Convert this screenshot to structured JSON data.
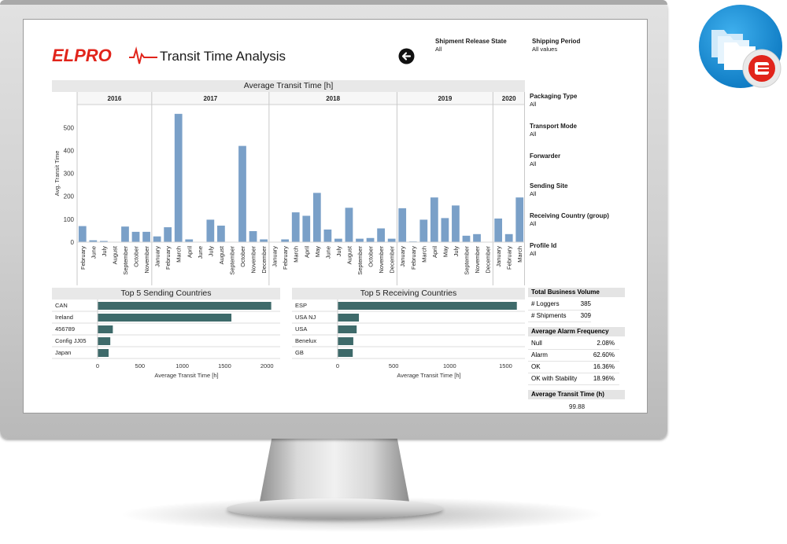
{
  "app": {
    "logo_text": "ELPRO",
    "title": "Transit Time Analysis"
  },
  "colors": {
    "bar": "#7aa0c8",
    "hbar": "#3e6a6a",
    "logo": "#e1241b",
    "icon_blue": "#1a8fd8"
  },
  "filters_top": [
    {
      "label": "Shipment Release State",
      "value": "All"
    },
    {
      "label": "Shipping Period",
      "value": "All values"
    }
  ],
  "filters_side": [
    {
      "label": "Packaging Type",
      "value": "All"
    },
    {
      "label": "Transport Mode",
      "value": "All"
    },
    {
      "label": "Forwarder",
      "value": "All"
    },
    {
      "label": "Sending Site",
      "value": "All"
    },
    {
      "label": "Receiving Country (group)",
      "value": "All"
    },
    {
      "label": "Profile Id",
      "value": "All"
    }
  ],
  "kpi": {
    "volume_title": "Total Business Volume",
    "volume": [
      {
        "label": "# Loggers",
        "value": "385"
      },
      {
        "label": "# Shipments",
        "value": "309"
      }
    ],
    "alarm_title": "Average Alarm Frequency",
    "alarm": [
      {
        "label": "Null",
        "value": "2.08%"
      },
      {
        "label": "Alarm",
        "value": "62.60%"
      },
      {
        "label": "OK",
        "value": "16.36%"
      },
      {
        "label": "OK with Stability",
        "value": "18.96%"
      }
    ],
    "avg_title": "Average Transit Time (h)",
    "avg_value": "99.88"
  },
  "chart_data": [
    {
      "type": "bar",
      "title": "Average Transit Time [h]",
      "ylabel": "Avg. Transit Time",
      "ylim": [
        0,
        580
      ],
      "yticks": [
        0,
        100,
        200,
        300,
        400,
        500
      ],
      "groups": [
        {
          "year": "2016",
          "months": [
            "February",
            "June",
            "July",
            "August",
            "September",
            "October",
            "November"
          ],
          "values": [
            70,
            8,
            5,
            0,
            68,
            45,
            45
          ]
        },
        {
          "year": "2017",
          "months": [
            "January",
            "February",
            "March",
            "April",
            "June",
            "July",
            "August",
            "September",
            "October",
            "November",
            "December"
          ],
          "values": [
            25,
            65,
            560,
            12,
            0,
            98,
            72,
            0,
            420,
            48,
            12
          ]
        },
        {
          "year": "2018",
          "months": [
            "January",
            "February",
            "March",
            "April",
            "May",
            "June",
            "July",
            "August",
            "September",
            "October",
            "November",
            "December"
          ],
          "values": [
            0,
            12,
            130,
            115,
            215,
            55,
            15,
            150,
            15,
            18,
            60,
            15
          ]
        },
        {
          "year": "2019",
          "months": [
            "January",
            "February",
            "March",
            "April",
            "May",
            "July",
            "September",
            "November",
            "December"
          ],
          "values": [
            148,
            3,
            98,
            195,
            105,
            160,
            28,
            35,
            0
          ]
        },
        {
          "year": "2020",
          "months": [
            "January",
            "February",
            "March"
          ],
          "values": [
            103,
            35,
            195
          ]
        }
      ]
    },
    {
      "type": "bar",
      "orientation": "horizontal",
      "title": "Top 5 Sending Countries",
      "xlabel": "Average Transit Time [h]",
      "xlim": [
        0,
        2100
      ],
      "xticks": [
        0,
        500,
        1000,
        1500,
        2000
      ],
      "categories": [
        "CAN",
        "Ireland",
        "456789",
        "Config JJ05",
        "Japan"
      ],
      "values": [
        2050,
        1580,
        180,
        150,
        130
      ]
    },
    {
      "type": "bar",
      "orientation": "horizontal",
      "title": "Top 5 Receiving Countries",
      "xlabel": "Average Transit Time [h]",
      "xlim": [
        0,
        1630
      ],
      "xticks": [
        0,
        500,
        1000,
        1500
      ],
      "categories": [
        "ESP",
        "USA NJ",
        "USA",
        "Benelux",
        "GB"
      ],
      "values": [
        1600,
        190,
        170,
        140,
        135
      ]
    }
  ]
}
